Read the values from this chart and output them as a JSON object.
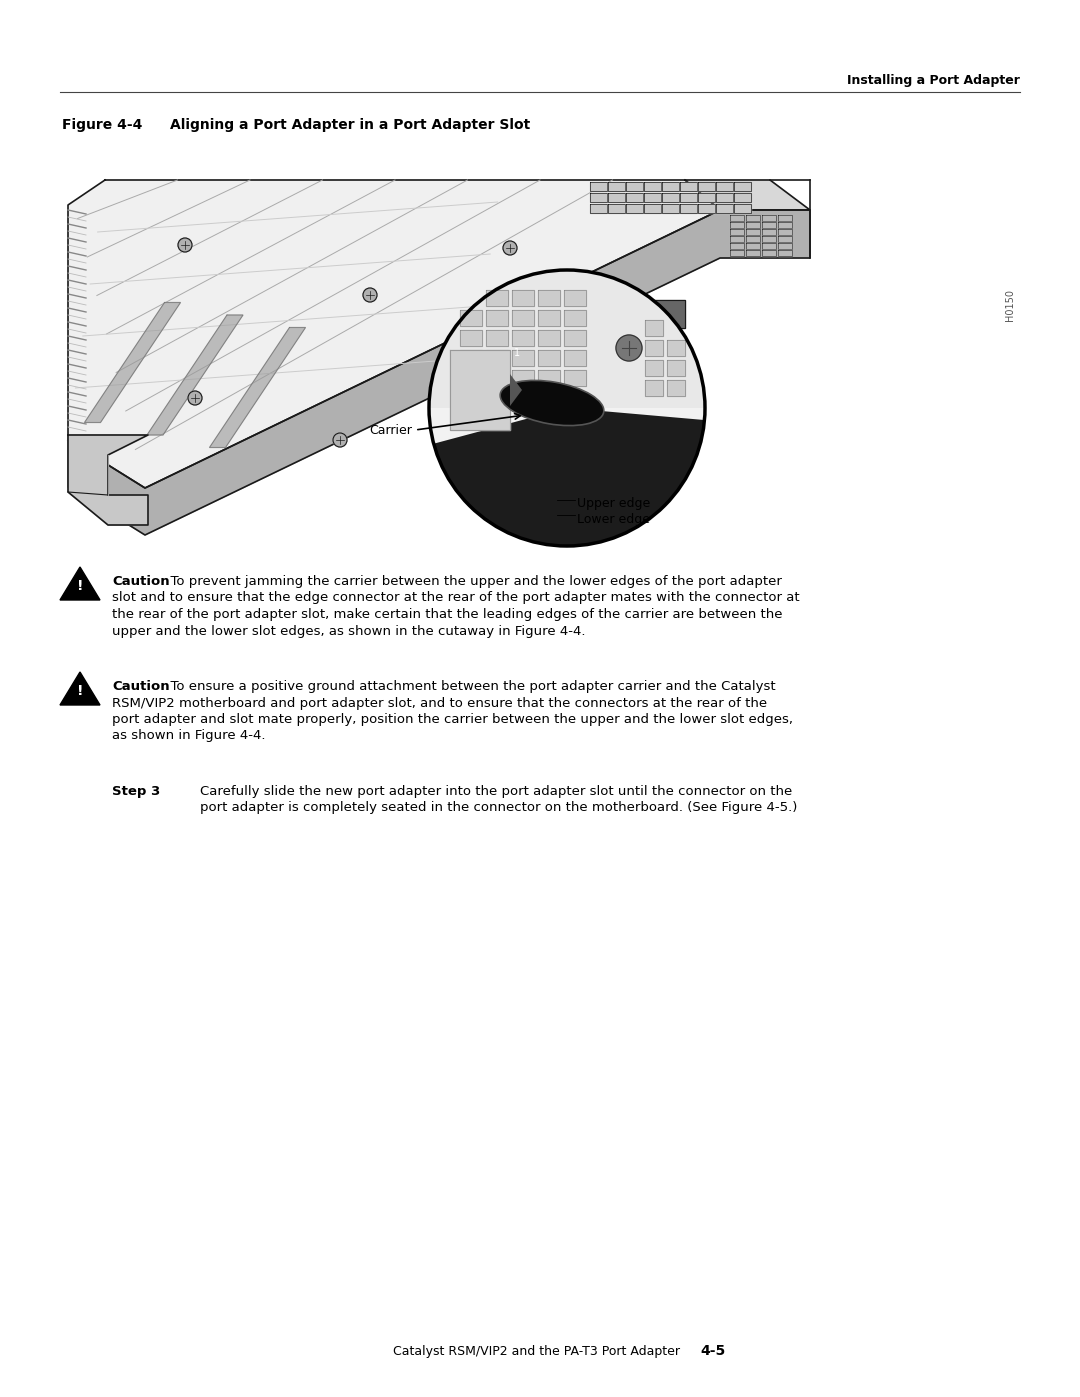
{
  "background_color": "#ffffff",
  "header_text": "Installing a Port Adapter",
  "header_fontsize": 9,
  "footer_text_left": "Catalyst RSM/VIP2 and the PA-T3 Port Adapter",
  "footer_text_right": "4-5",
  "footer_fontsize": 9,
  "figure_label": "Figure 4-4",
  "figure_title": "Aligning a Port Adapter in a Port Adapter Slot",
  "figure_label_fontsize": 10,
  "caution1_lines": [
    "slot and to ensure that the edge connector at the rear of the port adapter mates with the connector at",
    "the rear of the port adapter slot, make certain that the leading edges of the carrier are between the",
    "upper and the lower slot edges, as shown in the cutaway in Figure 4-4."
  ],
  "caution1_first": "To prevent jamming the carrier between the upper and the lower edges of the port adapter",
  "caution2_lines": [
    "RSM/VIP2 motherboard and port adapter slot, and to ensure that the connectors at the rear of the",
    "port adapter and slot mate properly, position the carrier between the upper and the lower slot edges,",
    "as shown in Figure 4-4."
  ],
  "caution2_first": "To ensure a positive ground attachment between the port adapter carrier and the Catalyst",
  "step3_first": "Carefully slide the new port adapter into the port adapter slot until the connector on the",
  "step3_second": "port adapter is completely seated in the connector on the motherboard. (See Figure 4-5.)",
  "body_fontsize": 9.5,
  "outline_color": "#1a1a1a",
  "fill_light": "#f0f0f0",
  "fill_mid": "#d8d8d8",
  "fill_dark": "#b0b0b0",
  "grid_color": "#c8c8c8",
  "slot_color": "#666666",
  "circle_dark": "#1a1a1a",
  "label_carrier": "Carrier",
  "label_upper": "Upper edge",
  "label_lower": "Lower edge",
  "label_h0150": "H0150"
}
